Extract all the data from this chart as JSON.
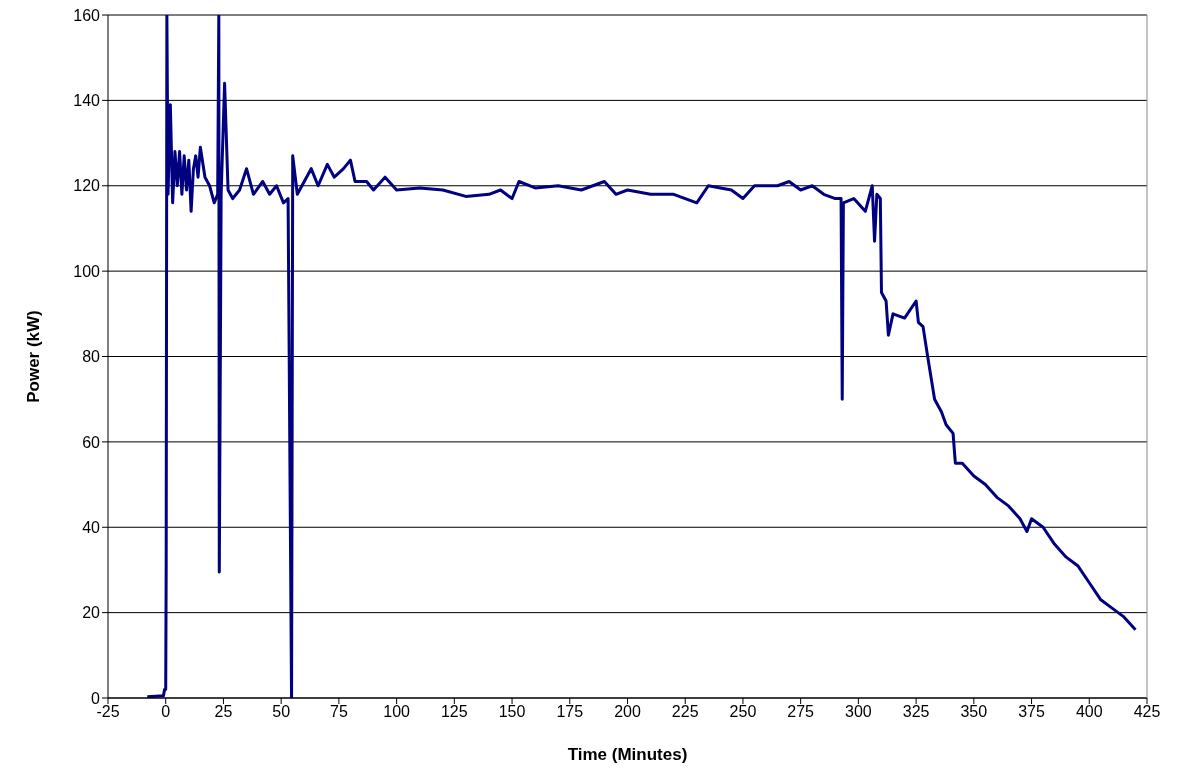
{
  "chart_data": {
    "type": "line",
    "xlabel": "Time (Minutes)",
    "ylabel": "Power (kW)",
    "xlim": [
      -25,
      425
    ],
    "xticks": [
      -25,
      0,
      25,
      50,
      75,
      100,
      125,
      150,
      175,
      200,
      225,
      250,
      275,
      300,
      325,
      350,
      375,
      400,
      425
    ],
    "ylim": [
      0,
      160
    ],
    "yticks": [
      0,
      20,
      40,
      60,
      80,
      100,
      120,
      140,
      160
    ],
    "grid": "y",
    "marker": "none",
    "line_style": "solid",
    "series": [
      {
        "color": "#000080",
        "x": [
          -8,
          -1,
          -0.5,
          0,
          0.2,
          0.5,
          1,
          2,
          3,
          4,
          5,
          6,
          7,
          8,
          9,
          10,
          11,
          12,
          13,
          14,
          15,
          17,
          19,
          21,
          22.5,
          23,
          23.2,
          24,
          25.5,
          27,
          29,
          32,
          35,
          38,
          42,
          45,
          48,
          51,
          53,
          54.5,
          55,
          57,
          60,
          63,
          66,
          70,
          73,
          77,
          80,
          82,
          87,
          90,
          95,
          100,
          110,
          120,
          130,
          140,
          145,
          150,
          153,
          160,
          170,
          180,
          190,
          195,
          200,
          210,
          220,
          230,
          235,
          245,
          250,
          255,
          265,
          270,
          275,
          280,
          285,
          290,
          292.5,
          293,
          293.5,
          298,
          303,
          306,
          307,
          308,
          309.5,
          310,
          312,
          313,
          315,
          320,
          325,
          326,
          328,
          330,
          333,
          336,
          338,
          341,
          342,
          345,
          350,
          355,
          360,
          365,
          370,
          373,
          375,
          380,
          385,
          390,
          395,
          400,
          405,
          410,
          415,
          420
        ],
        "values": [
          0.3,
          0.5,
          2,
          2,
          31,
          160,
          118,
          139,
          116,
          128,
          120,
          128,
          118,
          127,
          119,
          126,
          114,
          124,
          127,
          122,
          129,
          122,
          120,
          116,
          118,
          160,
          29.5,
          118,
          144,
          119,
          117,
          119,
          124,
          118,
          121,
          118,
          120,
          116,
          117,
          0,
          127,
          118,
          121,
          124,
          120,
          125,
          122,
          124,
          126,
          121,
          121,
          119,
          122,
          119,
          119.5,
          119,
          117.5,
          118,
          119,
          117,
          121,
          119.5,
          120,
          119,
          121,
          118,
          119,
          118,
          118,
          116,
          120,
          119,
          117,
          120,
          120,
          121,
          119,
          120,
          118,
          117,
          117,
          70,
          116,
          117,
          114,
          120,
          107,
          118,
          117,
          95,
          93,
          85,
          90,
          89,
          93,
          88,
          87,
          80,
          70,
          67,
          64,
          62,
          55,
          55,
          52,
          50,
          47,
          45,
          42,
          39,
          42,
          40,
          36,
          33,
          31,
          27,
          23,
          21,
          19,
          16
        ]
      }
    ]
  }
}
